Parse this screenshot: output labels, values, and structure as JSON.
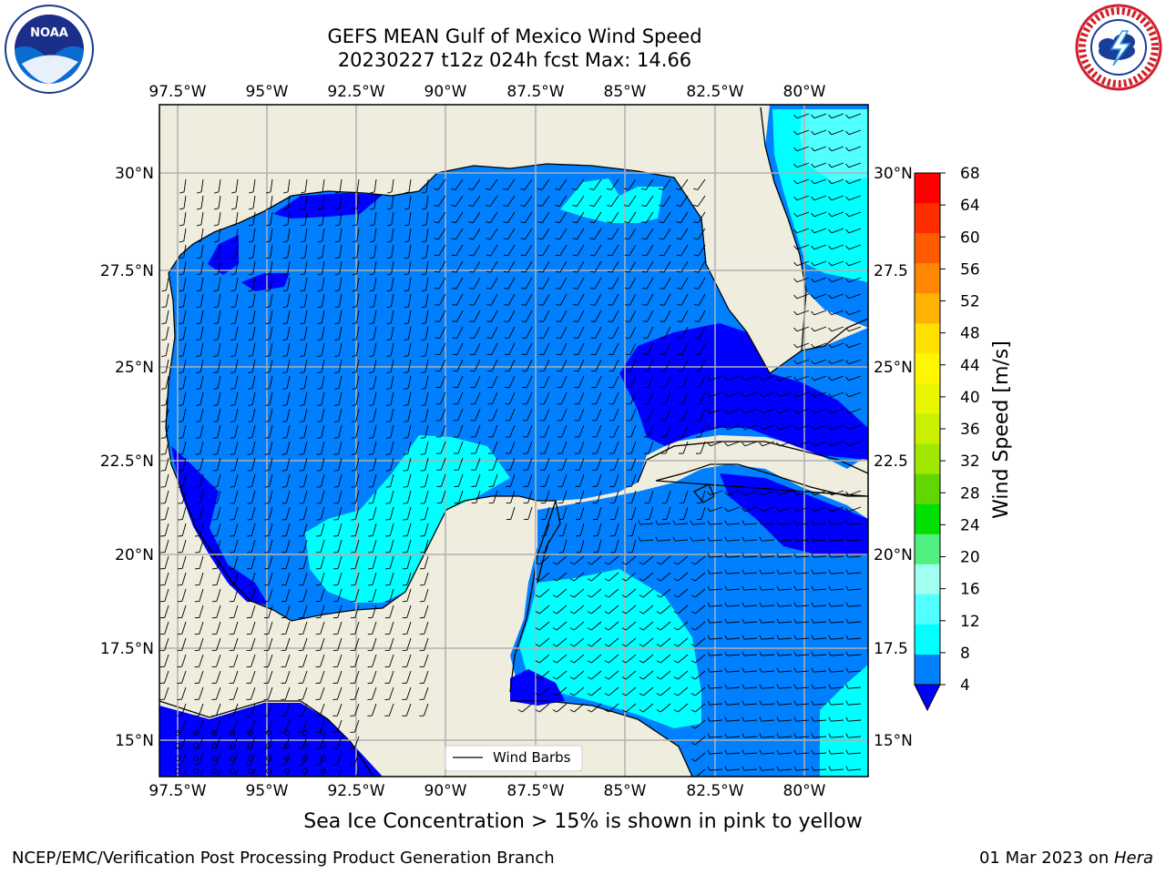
{
  "title_line1": "GEFS MEAN Gulf of Mexico Wind Speed",
  "title_line2": "20230227 t12z 024h fcst   Max: 14.66",
  "logos": {
    "left": "noaa-logo",
    "right": "nws-logo"
  },
  "noaa_logo_text": "NOAA",
  "lon_labels": [
    "97.5°W",
    "95°W",
    "92.5°W",
    "90°W",
    "87.5°W",
    "85°W",
    "82.5°W",
    "80°W"
  ],
  "lat_labels_left": [
    "30°N",
    "27.5°N",
    "25°N",
    "22.5°N",
    "20°N",
    "17.5°N",
    "15°N"
  ],
  "lat_labels_right": [
    "30°N",
    "27.5",
    "25°N",
    "22.5",
    "20°N",
    "17.5",
    "15°N"
  ],
  "legend_label": "Wind Barbs",
  "colorbar": {
    "label": "Wind Speed [m/s]",
    "ticks": [
      "68",
      "64",
      "60",
      "56",
      "52",
      "48",
      "44",
      "40",
      "36",
      "32",
      "28",
      "24",
      "20",
      "16",
      "12",
      "8",
      "4"
    ],
    "colors": [
      "#ff0000",
      "#ff2e00",
      "#ff5a00",
      "#ff8800",
      "#ffb300",
      "#ffe000",
      "#fff700",
      "#e8f700",
      "#c8f000",
      "#a0e800",
      "#60d800",
      "#00e000",
      "#50f080",
      "#a0fff0",
      "#50ffff",
      "#00ffff",
      "#0080ff"
    ],
    "extend_color": "#0000ff"
  },
  "wind_colors": {
    "dark": "#0000ff",
    "mid": "#0080ff",
    "light": "#00ffff",
    "pale": "#50ffff"
  },
  "land_color": "#efedde",
  "sea_ice_note": "Sea Ice Concentration > 15% is shown in pink to yellow",
  "branch_text": "NCEP/EMC/Verification Post Processing Product Generation Branch",
  "date_text": "01 Mar 2023 on ",
  "host_text": "Hera"
}
